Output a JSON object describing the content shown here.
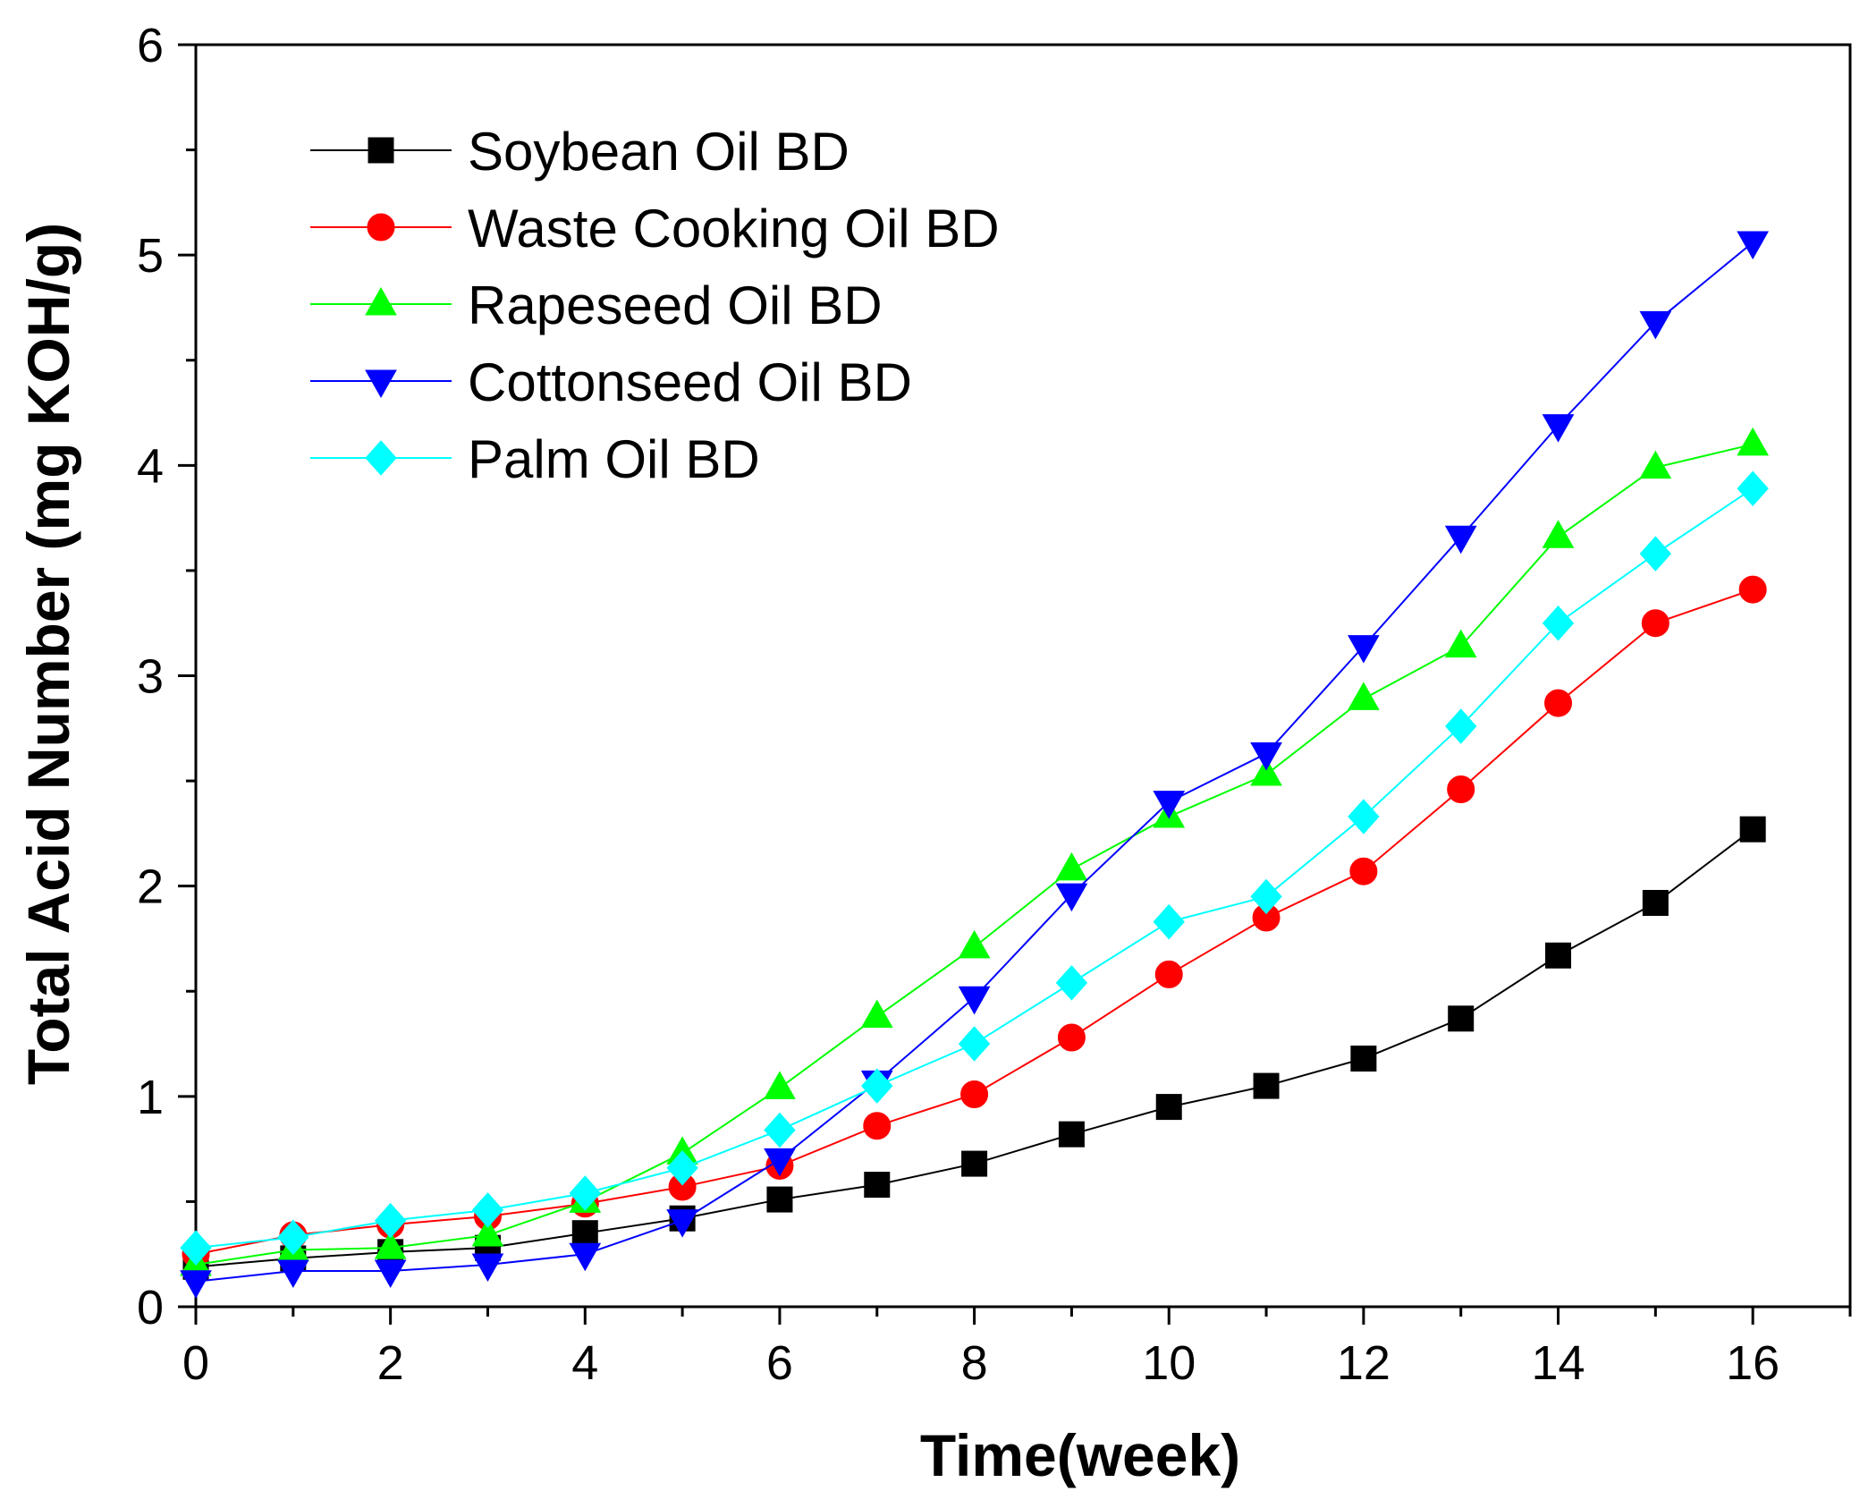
{
  "chart_data": {
    "type": "line",
    "title": "",
    "xlabel": "Time(week)",
    "ylabel": "Total Acid Number (mg KOH/g)",
    "xlim": [
      0,
      17
    ],
    "ylim": [
      0,
      6
    ],
    "xticks": [
      0,
      2,
      4,
      6,
      8,
      10,
      12,
      14,
      16
    ],
    "yticks": [
      0,
      1,
      2,
      3,
      4,
      5,
      6
    ],
    "xtick_labels": [
      "0",
      "2",
      "4",
      "6",
      "8",
      "10",
      "12",
      "14",
      "16"
    ],
    "ytick_labels": [
      "0",
      "1",
      "2",
      "3",
      "4",
      "5",
      "6"
    ],
    "grid": false,
    "legend_position": "top-left",
    "x": [
      0,
      1,
      2,
      3,
      4,
      5,
      6,
      7,
      8,
      9,
      10,
      11,
      12,
      13,
      14,
      15,
      16
    ],
    "series": [
      {
        "name": "Soybean Oil BD",
        "color": "#000000",
        "marker": "square",
        "values": [
          0.19,
          0.23,
          0.26,
          0.28,
          0.35,
          0.42,
          0.51,
          0.58,
          0.68,
          0.82,
          0.95,
          1.05,
          1.18,
          1.37,
          1.67,
          1.92,
          2.27
        ]
      },
      {
        "name": "Waste Cooking Oil BD",
        "color": "#ff0000",
        "marker": "circle",
        "values": [
          0.25,
          0.34,
          0.39,
          0.43,
          0.49,
          0.57,
          0.67,
          0.86,
          1.01,
          1.28,
          1.58,
          1.85,
          2.07,
          2.46,
          2.87,
          3.25,
          3.41
        ]
      },
      {
        "name": "Rapeseed Oil BD",
        "color": "#00ff00",
        "marker": "triangle-up",
        "values": [
          0.2,
          0.27,
          0.28,
          0.34,
          0.5,
          0.73,
          1.04,
          1.38,
          1.71,
          2.08,
          2.33,
          2.53,
          2.89,
          3.14,
          3.66,
          3.99,
          4.1
        ]
      },
      {
        "name": "Cottonseed Oil BD",
        "color": "#0000ff",
        "marker": "triangle-down",
        "values": [
          0.12,
          0.17,
          0.17,
          0.2,
          0.25,
          0.41,
          0.7,
          1.07,
          1.47,
          1.96,
          2.4,
          2.63,
          3.14,
          3.66,
          4.19,
          4.68,
          5.06
        ]
      },
      {
        "name": "Palm Oil BD",
        "color": "#00ffff",
        "marker": "diamond",
        "values": [
          0.28,
          0.33,
          0.41,
          0.46,
          0.54,
          0.66,
          0.84,
          1.05,
          1.25,
          1.54,
          1.83,
          1.95,
          2.33,
          2.76,
          3.25,
          3.58,
          3.89
        ]
      }
    ]
  }
}
